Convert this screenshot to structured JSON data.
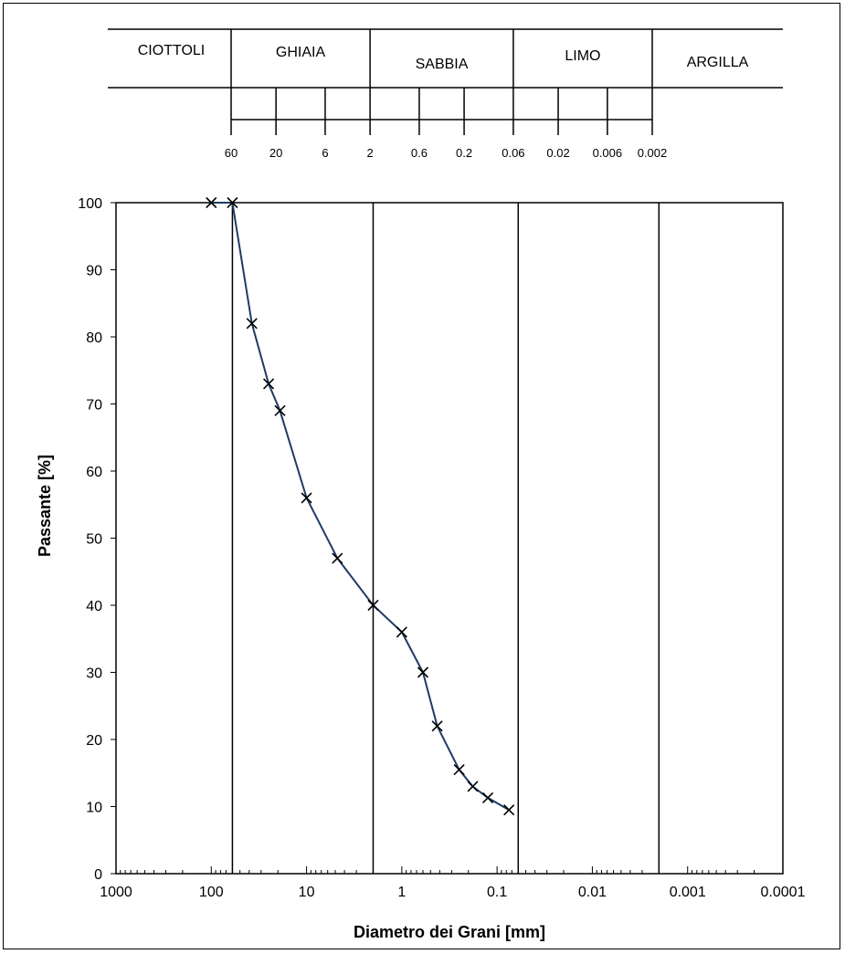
{
  "classification": {
    "bands": [
      "CIOTTOLI",
      "GHIAIA",
      "SABBIA",
      "LIMO",
      "ARGILLA"
    ],
    "limit_labels": [
      "60",
      "20",
      "6",
      "2",
      "0.6",
      "0.2",
      "0.06",
      "0.02",
      "0.006",
      "0.002"
    ],
    "limit_values": [
      60,
      20,
      6,
      2,
      0.6,
      0.2,
      0.06,
      0.02,
      0.006,
      0.002
    ]
  },
  "chart_data": {
    "type": "line",
    "title": "",
    "xlabel": "Diametro dei Grani [mm]",
    "ylabel": "Passante [%]",
    "x_scale": "log",
    "x_reversed": true,
    "xlim": [
      1000,
      0.0001
    ],
    "ylim": [
      0,
      100
    ],
    "x_tick_labels": [
      "1000",
      "100",
      "10",
      "1",
      "0.1",
      "0.01",
      "0.001",
      "0.0001"
    ],
    "x_tick_values": [
      1000,
      100,
      10,
      1,
      0.1,
      0.01,
      0.001,
      0.0001
    ],
    "y_tick_labels": [
      "0",
      "10",
      "20",
      "30",
      "40",
      "50",
      "60",
      "70",
      "80",
      "90",
      "100"
    ],
    "y_tick_values": [
      0,
      10,
      20,
      30,
      40,
      50,
      60,
      70,
      80,
      90,
      100
    ],
    "vertical_lines": [
      60,
      2,
      0.06,
      0.002
    ],
    "line_color": "#1f3b64",
    "marker": "x",
    "series": [
      {
        "x": [
          100,
          60,
          37.5,
          25,
          19,
          10,
          4.75,
          2,
          1,
          0.6,
          0.425,
          0.25,
          0.18,
          0.125,
          0.075
        ],
        "y": [
          100,
          100,
          82,
          73,
          69,
          56,
          47,
          40,
          36,
          30,
          22,
          15.5,
          13,
          11.3,
          9.5
        ]
      }
    ]
  }
}
